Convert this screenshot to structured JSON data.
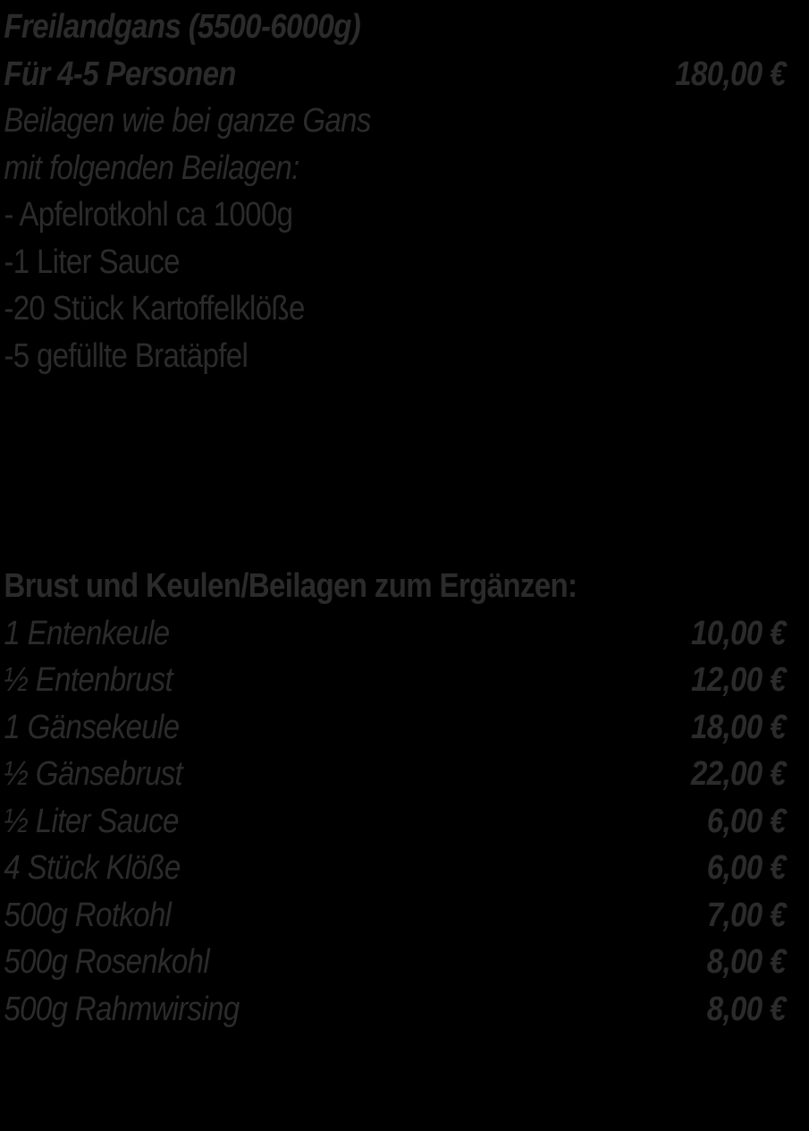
{
  "page": {
    "background_color": "#000000",
    "text_color": "#2b2b2b"
  },
  "goose_section": {
    "title": "Freilandgans (5500-6000g)",
    "serving": {
      "label": "Für 4-5 Personen",
      "price": "180,00 €"
    },
    "notes": {
      "line1": "Beilagen wie bei ganze Gans",
      "line2": "mit folgenden Beilagen:"
    },
    "includes": {
      "item1": "- Apfelrotkohl ca 1000g",
      "item2": "-1 Liter Sauce",
      "item3": "-20 Stück Kartoffelklöße",
      "item4": "-5 gefüllte Bratäpfel"
    }
  },
  "addons_section": {
    "title": "Brust und Keulen/Beilagen zum Ergänzen:",
    "items": [
      {
        "label": "1 Entenkeule",
        "price": "10,00 €"
      },
      {
        "label": "½ Entenbrust",
        "price": "12,00 €"
      },
      {
        "label": "1 Gänsekeule",
        "price": "18,00 €"
      },
      {
        "label": "½ Gänsebrust",
        "price": "22,00 €"
      },
      {
        "label": "½ Liter Sauce",
        "price": "6,00 €"
      },
      {
        "label": "4 Stück Klöße",
        "price": "6,00 €"
      },
      {
        "label": "500g Rotkohl",
        "price": "7,00 €"
      },
      {
        "label": "500g Rosenkohl",
        "price": "8,00 €"
      },
      {
        "label": "500g Rahmwirsing",
        "price": "8,00 €"
      }
    ]
  }
}
